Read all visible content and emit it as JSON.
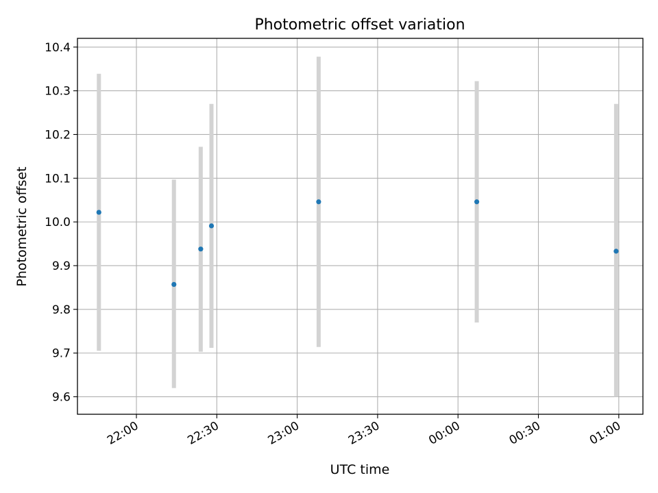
{
  "chart_data": {
    "type": "scatter",
    "title": "Photometric offset variation",
    "xlabel": "UTC time",
    "ylabel": "Photometric offset",
    "x_tick_labels": [
      "22:00",
      "22:30",
      "23:00",
      "23:30",
      "00:00",
      "00:30",
      "01:00"
    ],
    "y_tick_labels": [
      "9.6",
      "9.7",
      "9.8",
      "9.9",
      "10.0",
      "10.1",
      "10.2",
      "10.3",
      "10.4"
    ],
    "y_ticks": [
      9.6,
      9.7,
      9.8,
      9.9,
      10.0,
      10.1,
      10.2,
      10.3,
      10.4
    ],
    "ylim": [
      9.56,
      10.42
    ],
    "xlim": [
      "21:38",
      "01:09"
    ],
    "grid": true,
    "points": [
      {
        "time": "21:46",
        "y": 10.022,
        "err_low": 9.705,
        "err_high": 10.339
      },
      {
        "time": "22:14",
        "y": 9.857,
        "err_low": 9.62,
        "err_high": 10.097
      },
      {
        "time": "22:24",
        "y": 9.938,
        "err_low": 9.703,
        "err_high": 10.172
      },
      {
        "time": "22:28",
        "y": 9.991,
        "err_low": 9.712,
        "err_high": 10.27
      },
      {
        "time": "23:08",
        "y": 10.046,
        "err_low": 9.714,
        "err_high": 10.378
      },
      {
        "time": "00:07",
        "y": 10.046,
        "err_low": 9.77,
        "err_high": 10.322
      },
      {
        "time": "00:59",
        "y": 9.933,
        "err_low": 9.6,
        "err_high": 10.27
      }
    ],
    "colors": {
      "marker": "#1f77b4",
      "errorbar": "#d3d3d3",
      "grid": "#b0b0b0"
    }
  }
}
